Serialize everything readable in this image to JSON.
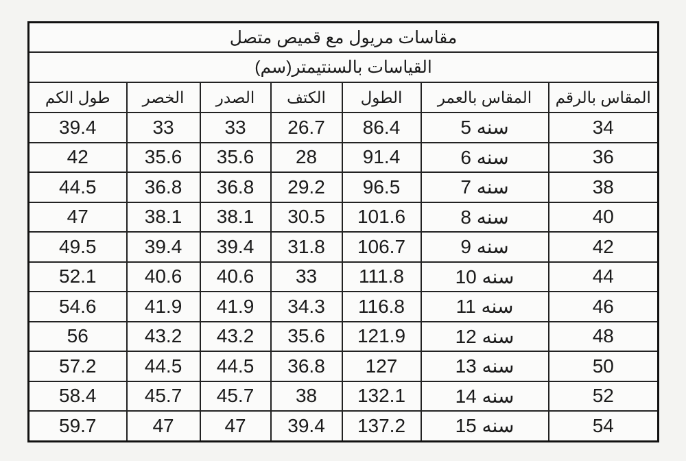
{
  "title": "مقاسات مريول مع قميص متصل",
  "subtitle": "القياسات بالسنتيمتر(سم)",
  "headers": [
    "المقاس بالرقم",
    "المقاس بالعمر",
    "الطول",
    "الكتف",
    "الصدر",
    "الخصر",
    "طول الكم"
  ],
  "rows": [
    [
      "34",
      "سنه 5",
      "86.4",
      "26.7",
      "33",
      "33",
      "39.4"
    ],
    [
      "36",
      "سنه 6",
      "91.4",
      "28",
      "35.6",
      "35.6",
      "42"
    ],
    [
      "38",
      "سنه 7",
      "96.5",
      "29.2",
      "36.8",
      "36.8",
      "44.5"
    ],
    [
      "40",
      "سنه 8",
      "101.6",
      "30.5",
      "38.1",
      "38.1",
      "47"
    ],
    [
      "42",
      "سنه 9",
      "106.7",
      "31.8",
      "39.4",
      "39.4",
      "49.5"
    ],
    [
      "44",
      "سنه 10",
      "111.8",
      "33",
      "40.6",
      "40.6",
      "52.1"
    ],
    [
      "46",
      "سنه 11",
      "116.8",
      "34.3",
      "41.9",
      "41.9",
      "54.6"
    ],
    [
      "48",
      "سنه 12",
      "121.9",
      "35.6",
      "43.2",
      "43.2",
      "56"
    ],
    [
      "50",
      "سنه 13",
      "127",
      "36.8",
      "44.5",
      "44.5",
      "57.2"
    ],
    [
      "52",
      "سنه 14",
      "132.1",
      "38",
      "45.7",
      "45.7",
      "58.4"
    ],
    [
      "54",
      "سنه 15",
      "137.2",
      "39.4",
      "47",
      "47",
      "59.7"
    ]
  ]
}
